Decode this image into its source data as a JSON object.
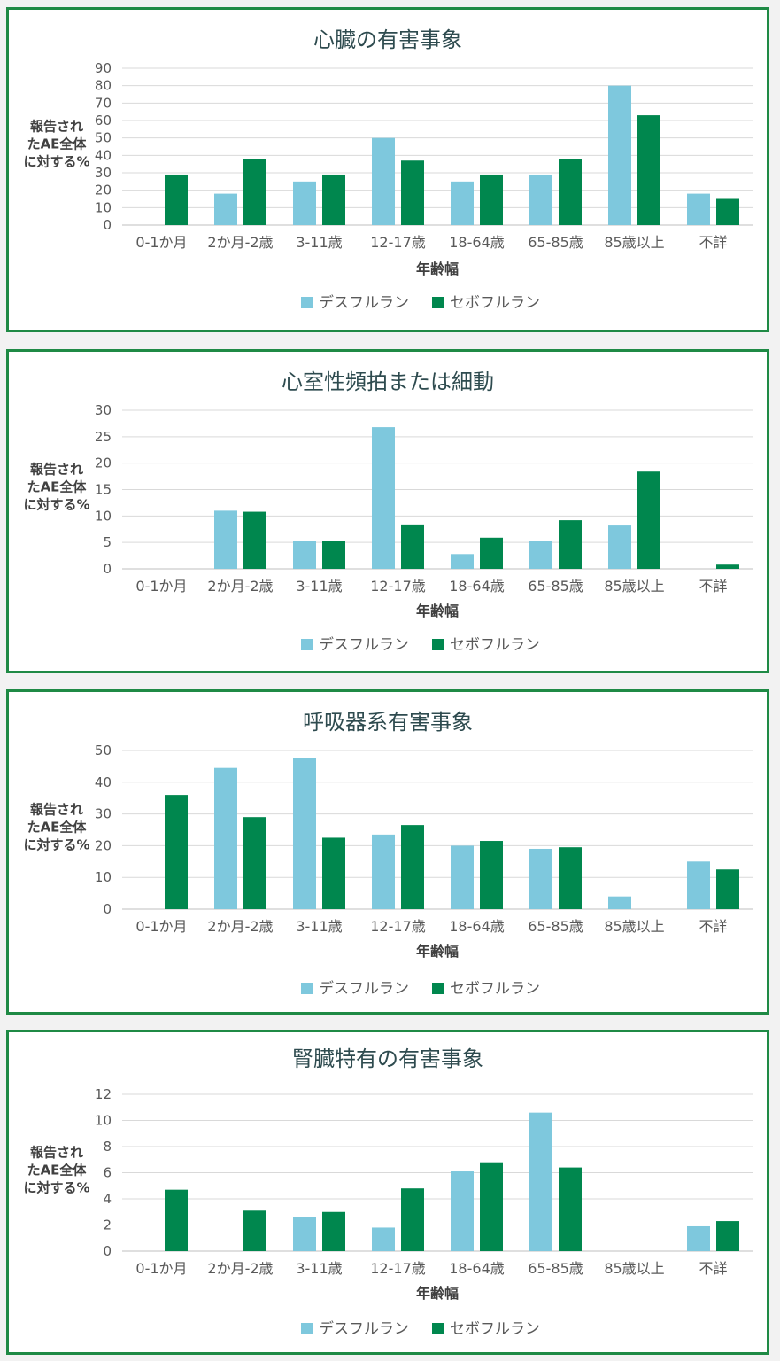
{
  "colors": {
    "desflurane": "#7ec8dd",
    "sevoflurane": "#00874e",
    "border": "#1f8a45",
    "title": "#2e4b4f"
  },
  "chart_data": [
    {
      "type": "bar",
      "title": "心臓の有害事象",
      "xlabel": "年齢幅",
      "ylabel": [
        "報告され",
        "たAE全体",
        "に対する%"
      ],
      "categories": [
        "0-1か月",
        "2か月-2歳",
        "3-11歳",
        "12-17歳",
        "18-64歳",
        "65-85歳",
        "85歳以上",
        "不詳"
      ],
      "ylim": [
        0,
        90
      ],
      "yticks": [
        0,
        10,
        20,
        30,
        40,
        50,
        60,
        70,
        80,
        90
      ],
      "grid": true,
      "legend": "bottom",
      "series": [
        {
          "name": "デスフルラン",
          "values": [
            0,
            18,
            25,
            50,
            25,
            29,
            80,
            18
          ]
        },
        {
          "name": "セボフルラン",
          "values": [
            29,
            38,
            29,
            37,
            29,
            38,
            63,
            15
          ]
        }
      ]
    },
    {
      "type": "bar",
      "title": "心室性頻拍または細動",
      "xlabel": "年齢幅",
      "ylabel": [
        "報告され",
        "たAE全体",
        "に対する%"
      ],
      "categories": [
        "0-1か月",
        "2か月-2歳",
        "3-11歳",
        "12-17歳",
        "18-64歳",
        "65-85歳",
        "85歳以上",
        "不詳"
      ],
      "ylim": [
        0,
        30
      ],
      "yticks": [
        0,
        5,
        10,
        15,
        20,
        25,
        30
      ],
      "grid": true,
      "legend": "bottom",
      "series": [
        {
          "name": "デスフルラン",
          "values": [
            0,
            11,
            5.2,
            26.8,
            2.8,
            5.3,
            8.2,
            0
          ]
        },
        {
          "name": "セボフルラン",
          "values": [
            0,
            10.8,
            5.3,
            8.4,
            5.9,
            9.2,
            18.4,
            0.8
          ]
        }
      ]
    },
    {
      "type": "bar",
      "title": "呼吸器系有害事象",
      "xlabel": "年齢幅",
      "ylabel": [
        "報告され",
        "たAE全体",
        "に対する%"
      ],
      "categories": [
        "0-1か月",
        "2か月-2歳",
        "3-11歳",
        "12-17歳",
        "18-64歳",
        "65-85歳",
        "85歳以上",
        "不詳"
      ],
      "ylim": [
        0,
        50
      ],
      "yticks": [
        0,
        10,
        20,
        30,
        40,
        50
      ],
      "grid": true,
      "legend": "bottom",
      "series": [
        {
          "name": "デスフルラン",
          "values": [
            0,
            44.5,
            47.5,
            23.5,
            20,
            19,
            4,
            15
          ]
        },
        {
          "name": "セボフルラン",
          "values": [
            36,
            29,
            22.5,
            26.5,
            21.5,
            19.5,
            0,
            12.5
          ]
        }
      ]
    },
    {
      "type": "bar",
      "title": "腎臓特有の有害事象",
      "xlabel": "年齢幅",
      "ylabel": [
        "報告され",
        "たAE全体",
        "に対する%"
      ],
      "categories": [
        "0-1か月",
        "2か月-2歳",
        "3-11歳",
        "12-17歳",
        "18-64歳",
        "65-85歳",
        "85歳以上",
        "不詳"
      ],
      "ylim": [
        0,
        12
      ],
      "yticks": [
        0,
        2,
        4,
        6,
        8,
        10,
        12
      ],
      "grid": true,
      "legend": "bottom",
      "series": [
        {
          "name": "デスフルラン",
          "values": [
            0,
            0,
            2.6,
            1.8,
            6.1,
            10.6,
            0,
            1.9
          ]
        },
        {
          "name": "セボフルラン",
          "values": [
            4.7,
            3.1,
            3.0,
            4.8,
            6.8,
            6.4,
            0,
            2.3
          ]
        }
      ]
    }
  ]
}
